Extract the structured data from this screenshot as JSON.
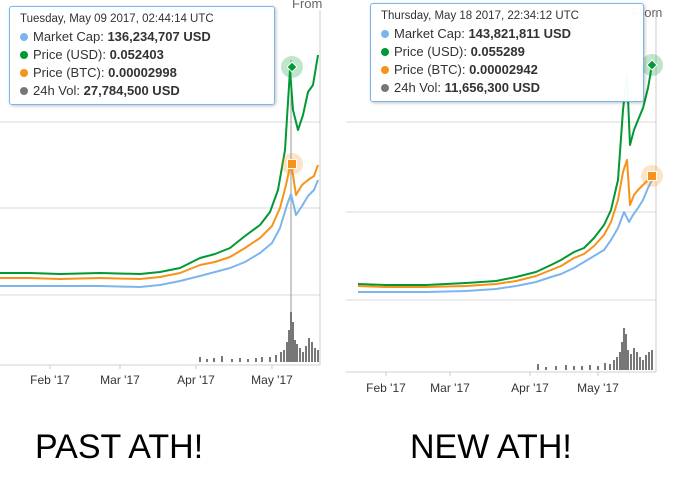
{
  "chart_data": [
    {
      "type": "line",
      "x_tick_labels": [
        "Feb '17",
        "Mar '17",
        "Apr '17",
        "May '17"
      ],
      "tooltip": {
        "timestamp": "Tuesday, May 09 2017, 02:44:14 UTC",
        "rows": [
          {
            "label": "Market Cap:",
            "value": "136,234,707 USD",
            "color": "#7cb5ec"
          },
          {
            "label": "Price (USD):",
            "value": "0.052403",
            "color": "#009933"
          },
          {
            "label": "Price (BTC):",
            "value": "0.00002998",
            "color": "#f7931a"
          },
          {
            "label": "24h Vol:",
            "value": "27,784,500 USD",
            "color": "#777777"
          }
        ]
      },
      "range_label": "From",
      "caption": "PAST ATH!",
      "series": [
        {
          "key": "market_cap",
          "color": "#7cb5ec",
          "points": [
            [
              0,
              286
            ],
            [
              30,
              286
            ],
            [
              60,
              286
            ],
            [
              100,
              286
            ],
            [
              140,
              287
            ],
            [
              160,
              285
            ],
            [
              180,
              281
            ],
            [
              200,
              276
            ],
            [
              215,
              272
            ],
            [
              230,
              268
            ],
            [
              245,
              262
            ],
            [
              260,
              253
            ],
            [
              272,
              243
            ],
            [
              280,
              228
            ],
            [
              287,
              205
            ],
            [
              291,
              194
            ],
            [
              296,
              215
            ],
            [
              302,
              206
            ],
            [
              308,
              196
            ],
            [
              314,
              190
            ],
            [
              318,
              180
            ]
          ]
        },
        {
          "key": "price_usd",
          "color": "#009933",
          "points": [
            [
              0,
              273
            ],
            [
              30,
              273
            ],
            [
              60,
              274
            ],
            [
              100,
              273
            ],
            [
              140,
              274
            ],
            [
              160,
              272
            ],
            [
              180,
              268
            ],
            [
              200,
              258
            ],
            [
              215,
              254
            ],
            [
              230,
              248
            ],
            [
              245,
              236
            ],
            [
              260,
              225
            ],
            [
              270,
              212
            ],
            [
              278,
              190
            ],
            [
              285,
              150
            ],
            [
              290,
              70
            ],
            [
              293,
              110
            ],
            [
              298,
              130
            ],
            [
              303,
              115
            ],
            [
              308,
              92
            ],
            [
              313,
              85
            ],
            [
              318,
              55
            ]
          ]
        },
        {
          "key": "price_btc",
          "color": "#f7931a",
          "points": [
            [
              0,
              278
            ],
            [
              30,
              278
            ],
            [
              60,
              279
            ],
            [
              100,
              278
            ],
            [
              140,
              279
            ],
            [
              160,
              277
            ],
            [
              180,
              273
            ],
            [
              200,
              265
            ],
            [
              215,
              262
            ],
            [
              230,
              257
            ],
            [
              245,
              248
            ],
            [
              260,
              238
            ],
            [
              272,
              226
            ],
            [
              280,
              208
            ],
            [
              286,
              185
            ],
            [
              291,
              162
            ],
            [
              296,
              195
            ],
            [
              302,
              185
            ],
            [
              308,
              180
            ],
            [
              314,
              176
            ],
            [
              318,
              165
            ]
          ]
        }
      ],
      "volume_bars": [
        [
          200,
          5
        ],
        [
          207,
          3
        ],
        [
          214,
          4
        ],
        [
          222,
          6
        ],
        [
          232,
          3
        ],
        [
          240,
          4
        ],
        [
          248,
          3
        ],
        [
          256,
          4
        ],
        [
          262,
          5
        ],
        [
          270,
          5
        ],
        [
          276,
          7
        ],
        [
          281,
          10
        ],
        [
          284,
          12
        ],
        [
          287,
          20
        ],
        [
          289,
          32
        ],
        [
          291,
          50
        ],
        [
          293,
          40
        ],
        [
          295,
          22
        ],
        [
          297,
          18
        ],
        [
          300,
          14
        ],
        [
          303,
          10
        ],
        [
          306,
          16
        ],
        [
          309,
          24
        ],
        [
          312,
          20
        ],
        [
          315,
          14
        ],
        [
          318,
          12
        ]
      ],
      "hover_x": 291,
      "markers": [
        {
          "x": 292,
          "y": 67,
          "color": "#009933",
          "shape": "diamond"
        },
        {
          "x": 292,
          "y": 164,
          "color": "#f7931a",
          "shape": "square"
        }
      ]
    },
    {
      "type": "line",
      "x_tick_labels": [
        "Feb '17",
        "Mar '17",
        "Apr '17",
        "May '17"
      ],
      "tooltip": {
        "timestamp": "Thursday, May 18 2017, 22:34:12 UTC",
        "rows": [
          {
            "label": "Market Cap:",
            "value": "143,821,811 USD",
            "color": "#7cb5ec"
          },
          {
            "label": "Price (USD):",
            "value": "0.055289",
            "color": "#009933"
          },
          {
            "label": "Price (BTC):",
            "value": "0.00002942",
            "color": "#f7931a"
          },
          {
            "label": "24h Vol:",
            "value": "11,656,300 USD",
            "color": "#777777"
          }
        ]
      },
      "range_label": "From",
      "series": [
        {
          "key": "market_cap",
          "color": "#7cb5ec",
          "points": [
            [
              12,
              292
            ],
            [
              40,
              292
            ],
            [
              80,
              292
            ],
            [
              120,
              291
            ],
            [
              150,
              289
            ],
            [
              170,
              286
            ],
            [
              190,
              282
            ],
            [
              205,
              277
            ],
            [
              215,
              274
            ],
            [
              228,
              268
            ],
            [
              238,
              262
            ],
            [
              248,
              256
            ],
            [
              258,
              250
            ],
            [
              265,
              240
            ],
            [
              272,
              228
            ],
            [
              278,
              212
            ],
            [
              283,
              222
            ],
            [
              287,
              215
            ],
            [
              292,
              208
            ],
            [
              297,
              200
            ],
            [
              302,
              188
            ],
            [
              306,
              180
            ]
          ]
        },
        {
          "key": "price_usd",
          "color": "#009933",
          "points": [
            [
              12,
              284
            ],
            [
              40,
              285
            ],
            [
              80,
              285
            ],
            [
              120,
              283
            ],
            [
              150,
              281
            ],
            [
              170,
              277
            ],
            [
              190,
              272
            ],
            [
              205,
              265
            ],
            [
              215,
              260
            ],
            [
              228,
              252
            ],
            [
              238,
              248
            ],
            [
              248,
              238
            ],
            [
              258,
              225
            ],
            [
              265,
              210
            ],
            [
              272,
              180
            ],
            [
              277,
              110
            ],
            [
              281,
              75
            ],
            [
              284,
              145
            ],
            [
              288,
              130
            ],
            [
              292,
              120
            ],
            [
              297,
              108
            ],
            [
              302,
              88
            ],
            [
              306,
              65
            ]
          ]
        },
        {
          "key": "price_btc",
          "color": "#f7931a",
          "points": [
            [
              12,
              286
            ],
            [
              40,
              287
            ],
            [
              80,
              287
            ],
            [
              120,
              286
            ],
            [
              150,
              284
            ],
            [
              170,
              281
            ],
            [
              190,
              276
            ],
            [
              205,
              270
            ],
            [
              215,
              266
            ],
            [
              228,
              258
            ],
            [
              238,
              254
            ],
            [
              248,
              246
            ],
            [
              258,
              235
            ],
            [
              265,
              222
            ],
            [
              272,
              200
            ],
            [
              277,
              172
            ],
            [
              281,
              160
            ],
            [
              284,
              205
            ],
            [
              288,
              195
            ],
            [
              292,
              190
            ],
            [
              297,
              185
            ],
            [
              302,
              180
            ],
            [
              306,
              176
            ]
          ]
        }
      ],
      "volume_bars": [
        [
          192,
          6
        ],
        [
          200,
          3
        ],
        [
          210,
          4
        ],
        [
          220,
          5
        ],
        [
          228,
          4
        ],
        [
          236,
          4
        ],
        [
          244,
          5
        ],
        [
          252,
          4
        ],
        [
          259,
          7
        ],
        [
          264,
          6
        ],
        [
          268,
          10
        ],
        [
          271,
          13
        ],
        [
          274,
          18
        ],
        [
          276,
          28
        ],
        [
          278,
          42
        ],
        [
          280,
          36
        ],
        [
          282,
          20
        ],
        [
          285,
          16
        ],
        [
          288,
          22
        ],
        [
          291,
          18
        ],
        [
          294,
          13
        ],
        [
          297,
          10
        ],
        [
          300,
          15
        ],
        [
          303,
          18
        ],
        [
          306,
          20
        ]
      ],
      "hover_x": null,
      "markers": [
        {
          "x": 306,
          "y": 65,
          "color": "#009933",
          "shape": "diamond"
        },
        {
          "x": 306,
          "y": 176,
          "color": "#f7931a",
          "shape": "square"
        }
      ]
    }
  ],
  "right_caption": "NEW ATH!"
}
